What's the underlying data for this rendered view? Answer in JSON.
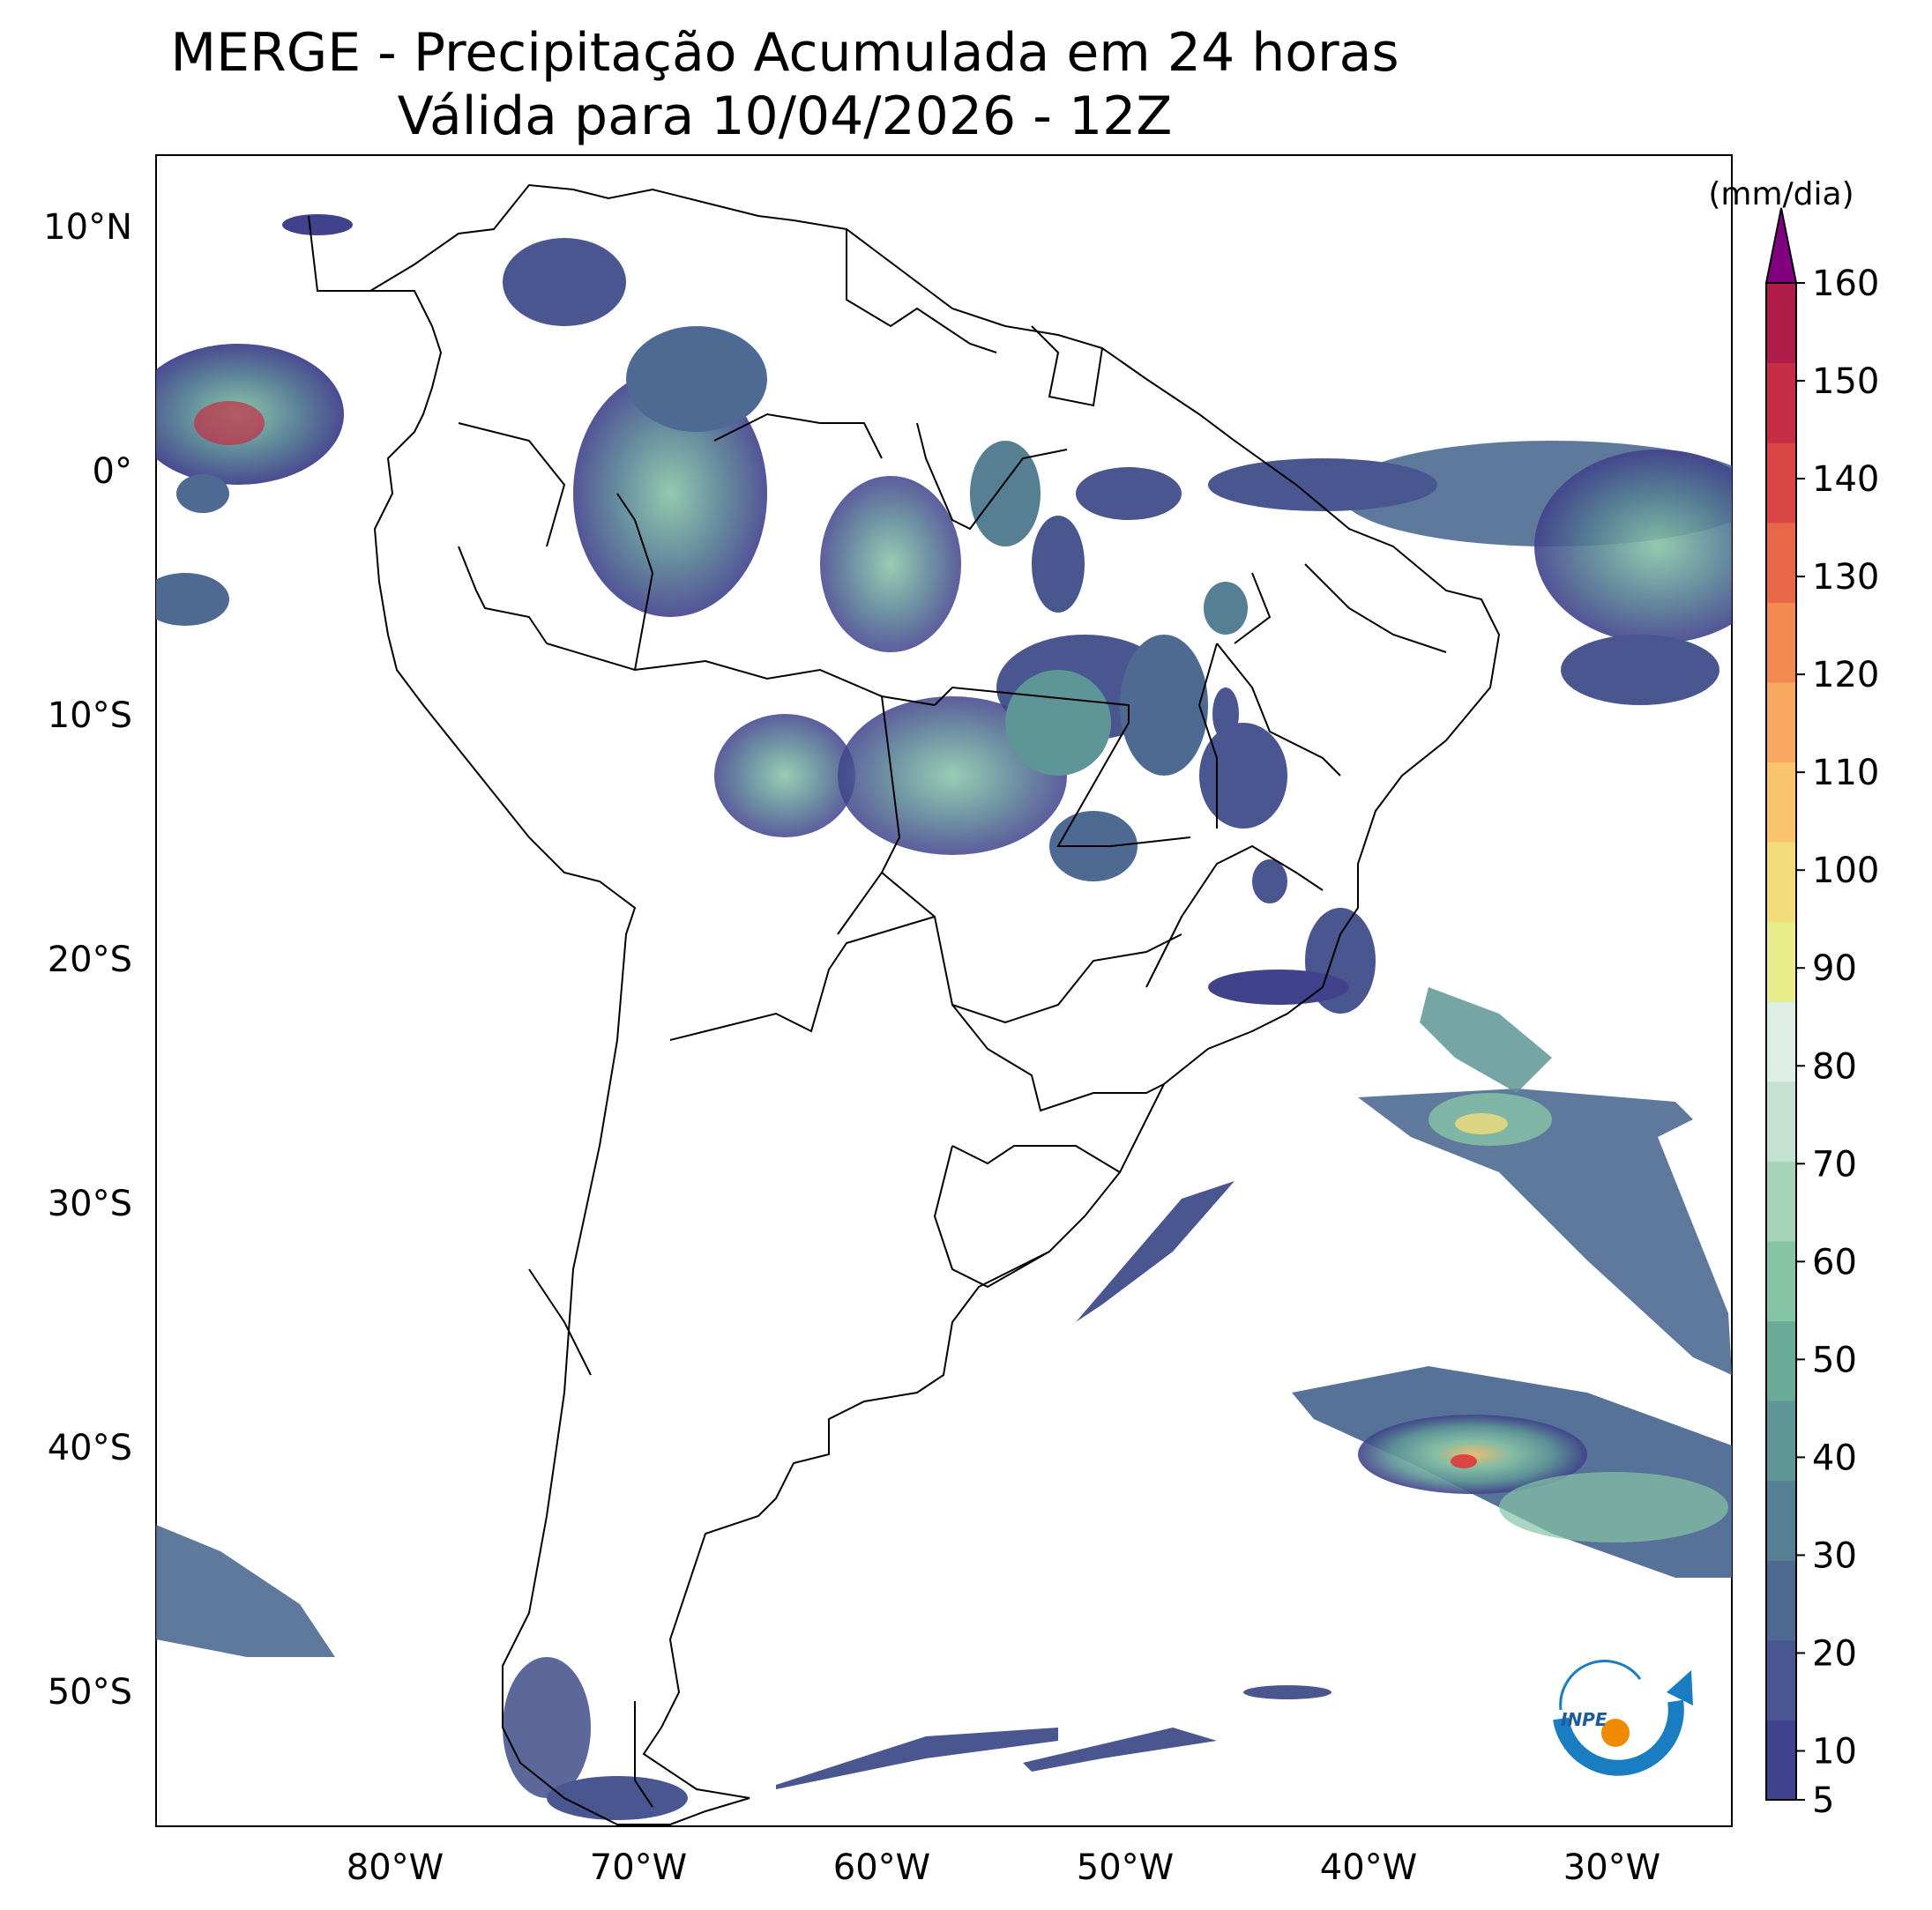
{
  "title": {
    "line1": "MERGE - Precipitação Acumulada em 24 horas",
    "line2": "Válida para 10/04/2026 - 12Z"
  },
  "lat_labels": [
    "10°N",
    "0°",
    "10°S",
    "20°S",
    "30°S",
    "40°S",
    "50°S"
  ],
  "lon_labels": [
    "80°W",
    "70°W",
    "60°W",
    "50°W",
    "40°W",
    "30°W"
  ],
  "colorbar": {
    "unit": "(mm/dia)",
    "ticks": [
      "5",
      "10",
      "20",
      "30",
      "40",
      "50",
      "60",
      "70",
      "80",
      "90",
      "100",
      "110",
      "120",
      "130",
      "140",
      "150",
      "160"
    ],
    "extend": "max",
    "colors": [
      "#40428b",
      "#4a568f",
      "#4e6a92",
      "#567f94",
      "#5e9596",
      "#6aab98",
      "#86c4a6",
      "#a7d4b8",
      "#c4e2d2",
      "#dfeee4",
      "#e8ec8a",
      "#f2dc7a",
      "#f9c56c",
      "#f8a860",
      "#f38a52",
      "#e86748",
      "#d94644",
      "#c52d45",
      "#ae1c47",
      "#800080"
    ]
  },
  "legend_icon": {
    "name": "inpe-logo",
    "text": "INPE"
  }
}
